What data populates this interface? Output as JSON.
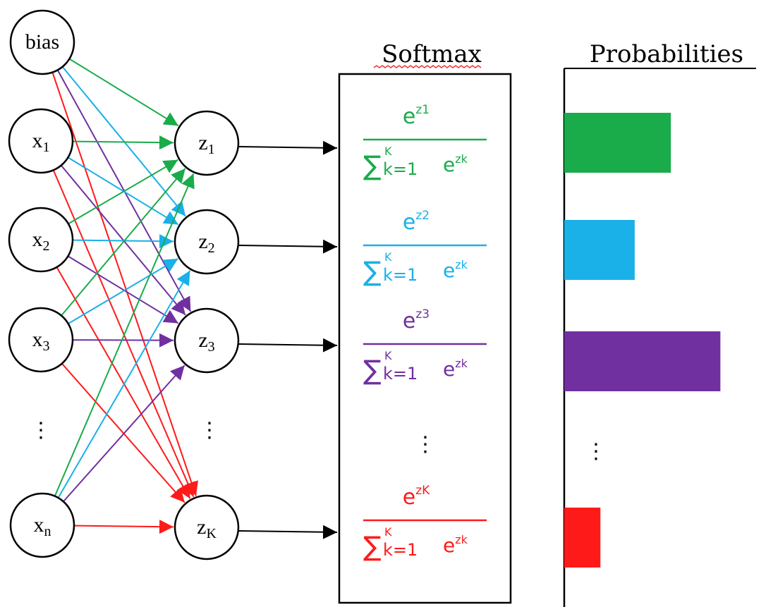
{
  "inputs": [
    {
      "label": "bias",
      "sub": ""
    },
    {
      "label": "x",
      "sub": "1"
    },
    {
      "label": "x",
      "sub": "2"
    },
    {
      "label": "x",
      "sub": "3"
    },
    {
      "label": "x",
      "sub": "n"
    }
  ],
  "outputs": [
    {
      "label": "z",
      "sub": "1",
      "color": "#1aab4b"
    },
    {
      "label": "z",
      "sub": "2",
      "color": "#1ab0e8"
    },
    {
      "label": "z",
      "sub": "3",
      "color": "#7030a0"
    },
    {
      "label": "z",
      "sub": "K",
      "color": "#ff1a1a"
    }
  ],
  "softmax": {
    "title": "Softmax",
    "numerator_base": "e",
    "numerator_exps": [
      "z1",
      "z2",
      "z3",
      "zK"
    ],
    "sum_symbol": "∑",
    "sum_upper": "K",
    "sum_lower": "k=1",
    "denominator_term": "e",
    "denominator_exp": "zk"
  },
  "probabilities": {
    "title": "Probabilities",
    "bar_levels": [
      0.56,
      0.37,
      0.82,
      0.19
    ]
  },
  "ellipsis": "⋮"
}
